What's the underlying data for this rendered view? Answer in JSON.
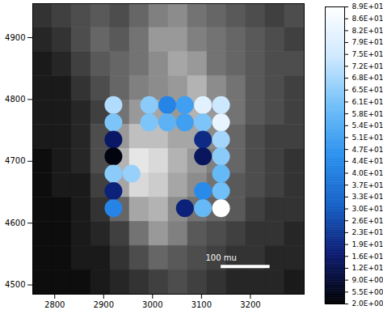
{
  "chart_data": {
    "type": "scatter",
    "xlim": [
      2755,
      3310
    ],
    "ylim": [
      4485,
      4955
    ],
    "xticks": [
      2800,
      2900,
      3000,
      3100,
      3200
    ],
    "yticks": [
      4500,
      4600,
      4700,
      4800,
      4900
    ],
    "image": {
      "range": [
        0,
        100
      ],
      "values": [
        [
          20,
          25,
          30,
          35,
          30,
          40,
          50,
          55,
          45,
          40,
          35,
          30,
          25,
          30
        ],
        [
          15,
          20,
          30,
          40,
          35,
          45,
          60,
          60,
          50,
          45,
          40,
          35,
          30,
          25
        ],
        [
          10,
          15,
          25,
          35,
          40,
          45,
          55,
          65,
          60,
          45,
          40,
          35,
          30,
          30
        ],
        [
          10,
          10,
          20,
          30,
          40,
          50,
          55,
          60,
          70,
          55,
          45,
          35,
          30,
          25
        ],
        [
          10,
          10,
          15,
          25,
          45,
          60,
          65,
          60,
          70,
          60,
          45,
          35,
          30,
          25
        ],
        [
          10,
          10,
          15,
          30,
          60,
          75,
          75,
          65,
          65,
          55,
          40,
          30,
          25,
          25
        ],
        [
          5,
          10,
          15,
          30,
          70,
          90,
          85,
          70,
          60,
          50,
          40,
          30,
          25,
          20
        ],
        [
          5,
          10,
          10,
          25,
          65,
          85,
          80,
          65,
          55,
          45,
          35,
          30,
          25,
          20
        ],
        [
          5,
          5,
          10,
          20,
          40,
          65,
          70,
          55,
          45,
          40,
          35,
          25,
          20,
          20
        ],
        [
          5,
          5,
          10,
          15,
          25,
          45,
          60,
          50,
          35,
          30,
          25,
          20,
          20,
          15
        ],
        [
          5,
          5,
          10,
          10,
          20,
          30,
          40,
          35,
          30,
          25,
          20,
          20,
          15,
          15
        ],
        [
          5,
          5,
          5,
          10,
          15,
          20,
          25,
          30,
          25,
          20,
          15,
          15,
          15,
          10
        ]
      ]
    },
    "points": {
      "x": [
        2920,
        2920,
        2920,
        2920,
        2920,
        2957,
        2920,
        2920,
        2993,
        3030,
        3066,
        3103,
        3140,
        2993,
        3030,
        3066,
        3103,
        3140,
        3103,
        3140,
        3103,
        3140,
        3140,
        3103,
        3140,
        3066,
        3103,
        3140
      ],
      "y": [
        4791,
        4763,
        4735,
        4708,
        4680,
        4680,
        4652,
        4624,
        4791,
        4791,
        4791,
        4791,
        4791,
        4763,
        4763,
        4763,
        4763,
        4763,
        4735,
        4735,
        4708,
        4708,
        4680,
        4652,
        4652,
        4624,
        4624,
        4624
      ],
      "values": [
        70,
        62,
        15,
        4,
        64,
        66,
        18,
        42,
        64,
        42,
        50,
        80,
        74,
        62,
        56,
        50,
        62,
        82,
        20,
        68,
        14,
        64,
        58,
        44,
        60,
        18,
        58,
        89
      ]
    },
    "colorbar": {
      "range": [
        2,
        89
      ],
      "colors": [
        "#000000",
        "#0b1a70",
        "#1560c8",
        "#2a90ee",
        "#70bff8",
        "#cfe9ff",
        "#ffffff"
      ],
      "ticks": [
        {
          "value": 89,
          "label": "8.9E+01"
        },
        {
          "value": 85.52,
          "label": "8.6E+01"
        },
        {
          "value": 82.04,
          "label": "8.2E+01"
        },
        {
          "value": 78.56,
          "label": "7.9E+01"
        },
        {
          "value": 75.08,
          "label": "7.5E+01"
        },
        {
          "value": 71.6,
          "label": "7.2E+01"
        },
        {
          "value": 68.12,
          "label": "6.8E+01"
        },
        {
          "value": 64.64,
          "label": "6.5E+01"
        },
        {
          "value": 61.16,
          "label": "6.1E+01"
        },
        {
          "value": 57.68,
          "label": "5.8E+01"
        },
        {
          "value": 54.2,
          "label": "5.4E+01"
        },
        {
          "value": 50.72,
          "label": "5.1E+01"
        },
        {
          "value": 47.24,
          "label": "4.7E+01"
        },
        {
          "value": 43.76,
          "label": "4.4E+01"
        },
        {
          "value": 40.28,
          "label": "4.0E+01"
        },
        {
          "value": 36.8,
          "label": "3.7E+01"
        },
        {
          "value": 33.32,
          "label": "3.3E+01"
        },
        {
          "value": 29.84,
          "label": "3.0E+01"
        },
        {
          "value": 26.36,
          "label": "2.6E+01"
        },
        {
          "value": 22.88,
          "label": "2.3E+01"
        },
        {
          "value": 19.4,
          "label": "1.9E+01"
        },
        {
          "value": 15.92,
          "label": "1.6E+01"
        },
        {
          "value": 12.44,
          "label": "1.2E+01"
        },
        {
          "value": 8.96,
          "label": "9.0E+00"
        },
        {
          "value": 5.48,
          "label": "5.5E+00"
        },
        {
          "value": 2,
          "label": "2.0E+00"
        }
      ]
    },
    "scalebar": {
      "label": "100 mu",
      "length": 100,
      "x": 3140,
      "y": 4530
    }
  }
}
